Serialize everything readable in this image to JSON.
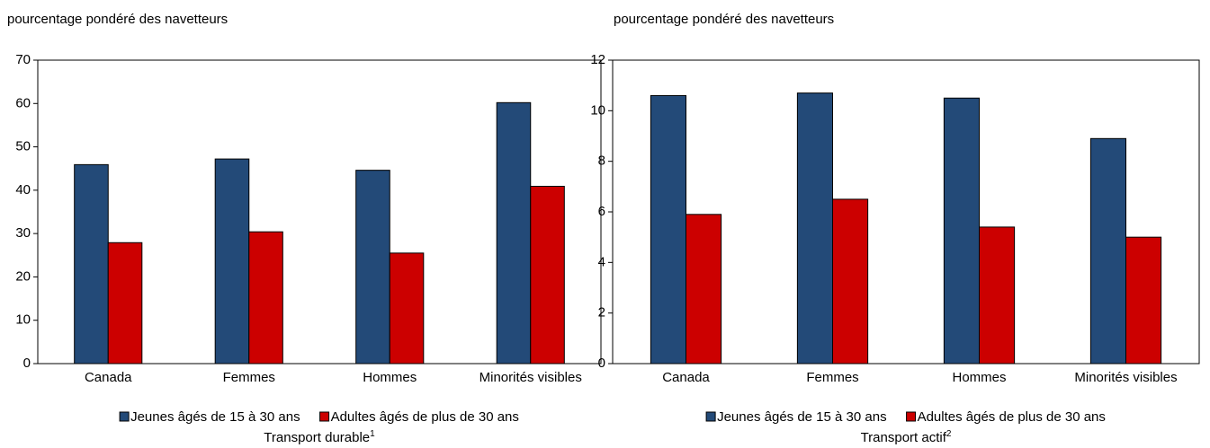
{
  "chart_data": [
    {
      "type": "bar",
      "ylabel": "pourcentage pondéré des navetteurs",
      "xlabel": "Transport durable",
      "xlabel_note": "1",
      "categories": [
        "Canada",
        "Femmes",
        "Hommes",
        "Minorités visibles"
      ],
      "series": [
        {
          "name": "Jeunes âgés de 15 à 30 ans",
          "color": "#234a78",
          "values": [
            45.9,
            47.2,
            44.6,
            60.2
          ]
        },
        {
          "name": "Adultes âgés de plus de 30 ans",
          "color": "#cc0000",
          "values": [
            27.9,
            30.4,
            25.5,
            40.9
          ]
        }
      ],
      "ylim": [
        0,
        70
      ],
      "yticks": [
        0,
        10,
        20,
        30,
        40,
        50,
        60,
        70
      ],
      "grid": false
    },
    {
      "type": "bar",
      "ylabel": "pourcentage pondéré des navetteurs",
      "xlabel": "Transport actif",
      "xlabel_note": "2",
      "categories": [
        "Canada",
        "Femmes",
        "Hommes",
        "Minorités visibles"
      ],
      "series": [
        {
          "name": "Jeunes âgés de 15 à 30 ans",
          "color": "#234a78",
          "values": [
            10.6,
            10.7,
            10.5,
            8.9
          ]
        },
        {
          "name": "Adultes âgés de plus de 30 ans",
          "color": "#cc0000",
          "values": [
            5.9,
            6.5,
            5.4,
            5.0
          ]
        }
      ],
      "ylim": [
        0,
        12
      ],
      "yticks": [
        0,
        2,
        4,
        6,
        8,
        10,
        12
      ],
      "grid": false
    }
  ]
}
